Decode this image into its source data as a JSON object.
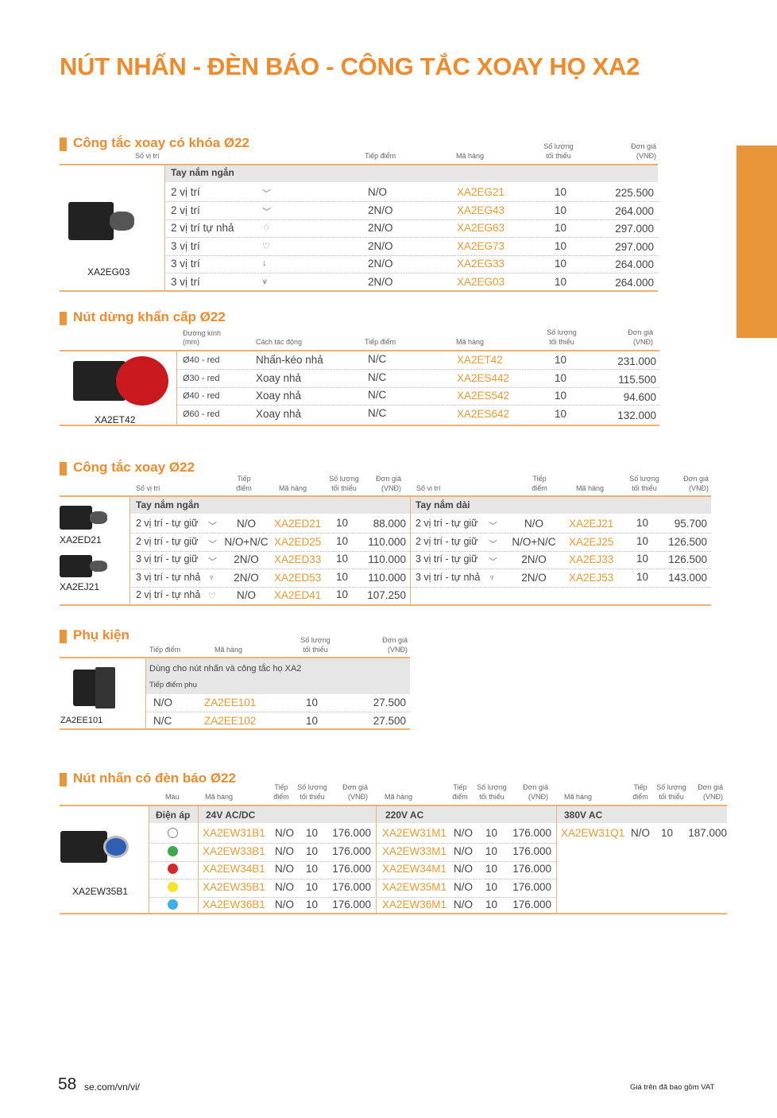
{
  "page_title": "NÚT NHẤN -  ĐÈN BÁO - CÔNG TẮC XOAY HỌ XA2",
  "accent_color": "#E9963B",
  "s1": {
    "title": "Công tắc xoay có khóa Ø22",
    "headers": {
      "pos": "Số vị trí",
      "contact": "Tiếp điểm",
      "code": "Mã hàng",
      "qty1": "Số lượng",
      "qty2": "tối thiểu",
      "price1": "Đơn giá",
      "price2": "(VNĐ)"
    },
    "image_label": "XA2EG03",
    "band": "Tay nắm ngắn",
    "rows": [
      {
        "pos": "2 vị trí",
        "icon": "﹀",
        "contact": "N/O",
        "code": "XA2EG21",
        "qty": "10",
        "price": "225.500"
      },
      {
        "pos": "2 vị trí",
        "icon": "﹀",
        "contact": "2N/O",
        "code": "XA2EG43",
        "qty": "10",
        "price": "264.000"
      },
      {
        "pos": "2 vị trí tự nhả",
        "icon": "♢",
        "contact": "2N/O",
        "code": "XA2EG63",
        "qty": "10",
        "price": "297.000"
      },
      {
        "pos": "3 vị trí",
        "icon": "♡",
        "contact": "2N/O",
        "code": "XA2EG73",
        "qty": "10",
        "price": "297.000"
      },
      {
        "pos": "3 vị trí",
        "icon": "↓",
        "contact": "2N/O",
        "code": "XA2EG33",
        "qty": "10",
        "price": "264.000"
      },
      {
        "pos": "3 vị trí",
        "icon": "⩛",
        "contact": "2N/O",
        "code": "XA2EG03",
        "qty": "10",
        "price": "264.000"
      }
    ]
  },
  "s2": {
    "title": "Nút dừng khẩn cấp Ø22",
    "headers": {
      "dia1": "Đường kính",
      "dia2": "(mm)",
      "action": "Cách tác động",
      "contact": "Tiếp điểm",
      "code": "Mã hàng",
      "qty1": "Số lượng",
      "qty2": "tối thiểu",
      "price1": "Đơn giá",
      "price2": "(VNĐ)"
    },
    "image_label": "XA2ET42",
    "rows": [
      {
        "dia": "Ø40 - red",
        "action": "Nhấn-kéo nhả",
        "contact": "N/C",
        "code": "XA2ET42",
        "qty": "10",
        "price": "231.000"
      },
      {
        "dia": "Ø30 - red",
        "action": "Xoay nhả",
        "contact": "N/C",
        "code": "XA2ES442",
        "qty": "10",
        "price": "115.500"
      },
      {
        "dia": "Ø40 - red",
        "action": "Xoay nhả",
        "contact": "N/C",
        "code": "XA2ES542",
        "qty": "10",
        "price": "94.600"
      },
      {
        "dia": "Ø60 - red",
        "action": "Xoay nhả",
        "contact": "N/C",
        "code": "XA2ES642",
        "qty": "10",
        "price": "132.000"
      }
    ]
  },
  "s3": {
    "title": "Công tắc xoay Ø22",
    "headers": {
      "pos": "Số vị trí",
      "contact1": "Tiếp",
      "contact2": "điểm",
      "code": "Mã hàng",
      "qty1": "Số lượng",
      "qty2": "tối thiểu",
      "price1": "Đơn giá",
      "price2": "(VNĐ)"
    },
    "image_labels": [
      "XA2ED21",
      "XA2EJ21"
    ],
    "left": {
      "band": "Tay nắm ngắn",
      "rows": [
        {
          "pos": "2 vị trí - tự giữ",
          "icon": "﹀",
          "contact": "N/O",
          "code": "XA2ED21",
          "qty": "10",
          "price": "88.000"
        },
        {
          "pos": "2 vị trí - tự giữ",
          "icon": "﹀",
          "contact": "N/O+N/C",
          "code": "XA2ED25",
          "qty": "10",
          "price": "110.000"
        },
        {
          "pos": "3 vị trí - tự giữ",
          "icon": "﹀",
          "contact": "2N/O",
          "code": "XA2ED33",
          "qty": "10",
          "price": "110.000"
        },
        {
          "pos": "3 vị trí - tự nhả",
          "icon": "♆",
          "contact": "2N/O",
          "code": "XA2ED53",
          "qty": "10",
          "price": "110.000"
        },
        {
          "pos": "2 vị trí - tự nhả",
          "icon": "♡",
          "contact": "N/O",
          "code": "XA2ED41",
          "qty": "10",
          "price": "107.250"
        }
      ]
    },
    "right": {
      "band": "Tay nắm dài",
      "rows": [
        {
          "pos": "2 vị trí - tự giữ",
          "icon": "﹀",
          "contact": "N/O",
          "code": "XA2EJ21",
          "qty": "10",
          "price": "95.700"
        },
        {
          "pos": "2 vị trí - tự giữ",
          "icon": "﹀",
          "contact": "N/O+N/C",
          "code": "XA2EJ25",
          "qty": "10",
          "price": "126.500"
        },
        {
          "pos": "3 vị trí - tự giữ",
          "icon": "﹀",
          "contact": "2N/O",
          "code": "XA2EJ33",
          "qty": "10",
          "price": "126.500"
        },
        {
          "pos": "3 vị trí - tự nhả",
          "icon": "♆",
          "contact": "2N/O",
          "code": "XA2EJ53",
          "qty": "10",
          "price": "143.000"
        }
      ]
    }
  },
  "s4": {
    "title": "Phụ kiện",
    "headers": {
      "contact": "Tiếp điểm",
      "code": "Mã hàng",
      "qty1": "Số lượng",
      "qty2": "tối thiểu",
      "price1": "Đơn giá",
      "price2": "(VNĐ)"
    },
    "image_label": "ZA2EE101",
    "band1": "Dùng cho nút nhấn và công tắc họ XA2",
    "band2": "Tiếp điểm phụ",
    "rows": [
      {
        "contact": "N/O",
        "code": "ZA2EE101",
        "qty": "10",
        "price": "27.500"
      },
      {
        "contact": "N/C",
        "code": "ZA2EE102",
        "qty": "10",
        "price": "27.500"
      }
    ]
  },
  "s5": {
    "title": "Nút nhấn có đèn báo Ø22",
    "headers": {
      "color": "Màu",
      "code": "Mã hàng",
      "contact1": "Tiếp",
      "contact2": "điểm",
      "qty1": "Số lượng",
      "qty2": "tối thiểu",
      "price1": "Đơn giá",
      "price2": "(VNĐ)"
    },
    "image_label": "XA2EW35B1",
    "voltage_label": "Điện áp",
    "colors": [
      "#FFFFFF",
      "#3DAA4A",
      "#D9262A",
      "#F4E42A",
      "#3BB0E6"
    ],
    "groups": [
      {
        "band": "24V AC/DC",
        "rows": [
          {
            "code": "XA2EW31B1",
            "contact": "N/O",
            "qty": "10",
            "price": "176.000"
          },
          {
            "code": "XA2EW33B1",
            "contact": "N/O",
            "qty": "10",
            "price": "176.000"
          },
          {
            "code": "XA2EW34B1",
            "contact": "N/O",
            "qty": "10",
            "price": "176.000"
          },
          {
            "code": "XA2EW35B1",
            "contact": "N/O",
            "qty": "10",
            "price": "176.000"
          },
          {
            "code": "XA2EW36B1",
            "contact": "N/O",
            "qty": "10",
            "price": "176.000"
          }
        ]
      },
      {
        "band": "220V AC",
        "rows": [
          {
            "code": "XA2EW31M1",
            "contact": "N/O",
            "qty": "10",
            "price": "176.000"
          },
          {
            "code": "XA2EW33M1",
            "contact": "N/O",
            "qty": "10",
            "price": "176.000"
          },
          {
            "code": "XA2EW34M1",
            "contact": "N/O",
            "qty": "10",
            "price": "176.000"
          },
          {
            "code": "XA2EW35M1",
            "contact": "N/O",
            "qty": "10",
            "price": "176.000"
          },
          {
            "code": "XA2EW36M1",
            "contact": "N/O",
            "qty": "10",
            "price": "176.000"
          }
        ]
      },
      {
        "band": "380V AC",
        "rows": [
          {
            "code": "XA2EW31Q1",
            "contact": "N/O",
            "qty": "10",
            "price": "187.000"
          }
        ]
      }
    ]
  },
  "footer": {
    "page_number": "58",
    "url": "se.com/vn/vi/",
    "note": "Giá trên đã bao gồm VAT"
  }
}
